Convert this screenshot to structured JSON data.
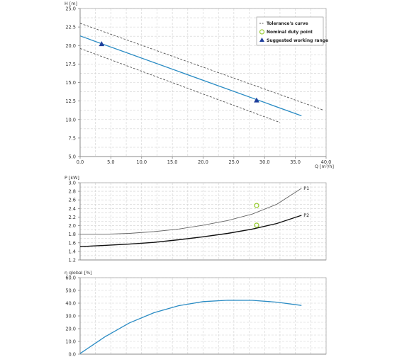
{
  "colors": {
    "curve": "#2b8cc4",
    "tolerance": "#555555",
    "p1": "#666666",
    "p2": "#111111",
    "duty_point": "#9acd32",
    "working_range": "#1f3f9c",
    "grid": "#d0d0d0",
    "axis": "#888888",
    "text": "#333333"
  },
  "chart_data": [
    {
      "type": "line",
      "ylabel": "H [m]",
      "xlabel": "Q [m³/h]",
      "xlim": [
        0,
        40
      ],
      "ylim": [
        5,
        25
      ],
      "xticks": [
        0,
        5,
        10,
        15,
        20,
        25,
        30,
        35,
        40
      ],
      "xtick_labels": [
        "0.0",
        "5.0",
        "10.0",
        "15.0",
        "20.0",
        "25.0",
        "30.0",
        "35.0",
        "40.0"
      ],
      "yticks": [
        5,
        7.5,
        10,
        12.5,
        15,
        17.5,
        20,
        22.5,
        25
      ],
      "ytick_labels": [
        "5.0",
        "7.5",
        "10.0",
        "12.5",
        "15.0",
        "17.5",
        "20.0",
        "22.5",
        "25.0"
      ],
      "grid": true,
      "legend_position": "top-right",
      "legend": [
        "Tolerance's curve",
        "Nominal duty point",
        "Suggested working range"
      ],
      "series": [
        {
          "role": "curve",
          "x": [
            0,
            36
          ],
          "y": [
            21.3,
            10.5
          ]
        },
        {
          "role": "tolerance",
          "x": [
            0,
            39.5
          ],
          "y": [
            23.0,
            11.3
          ]
        },
        {
          "role": "tolerance",
          "x": [
            0,
            32.5
          ],
          "y": [
            19.6,
            9.6
          ]
        }
      ],
      "working_range_points": [
        {
          "x": 3.5,
          "y": 20.2
        },
        {
          "x": 28.7,
          "y": 12.6
        }
      ]
    },
    {
      "type": "line",
      "ylabel": "P [kW]",
      "xlim": [
        0,
        40
      ],
      "ylim": [
        1.2,
        3.0
      ],
      "yticks": [
        1.2,
        1.4,
        1.6,
        1.8,
        2.0,
        2.2,
        2.4,
        2.6,
        2.8,
        3.0
      ],
      "ytick_labels": [
        "1.2",
        "1.4",
        "1.6",
        "1.8",
        "2.0",
        "2.2",
        "2.4",
        "2.6",
        "2.8",
        "3.0"
      ],
      "grid": true,
      "series": [
        {
          "name": "P1",
          "x": [
            0,
            4,
            8,
            12,
            16,
            20,
            24,
            28,
            32,
            36
          ],
          "y": [
            1.8,
            1.8,
            1.82,
            1.86,
            1.92,
            2.01,
            2.12,
            2.27,
            2.5,
            2.87
          ]
        },
        {
          "name": "P2",
          "x": [
            0,
            4,
            8,
            12,
            16,
            20,
            24,
            28,
            32,
            36
          ],
          "y": [
            1.51,
            1.54,
            1.57,
            1.61,
            1.67,
            1.74,
            1.82,
            1.92,
            2.05,
            2.24
          ]
        }
      ],
      "duty_points": [
        {
          "x": 28.7,
          "y": 2.47
        },
        {
          "x": 28.7,
          "y": 2.01
        }
      ]
    },
    {
      "type": "line",
      "ylabel": "η global [%]",
      "xlim": [
        0,
        40
      ],
      "ylim": [
        0,
        60
      ],
      "yticks": [
        0,
        10,
        20,
        30,
        40,
        50,
        60
      ],
      "ytick_labels": [
        "0.0",
        "10.0",
        "20.0",
        "30.0",
        "40.0",
        "50.0",
        "60.0"
      ],
      "grid": true,
      "series": [
        {
          "name": "",
          "x": [
            0,
            4,
            8,
            12,
            16,
            20,
            24,
            28,
            32,
            36
          ],
          "y": [
            0.5,
            13.5,
            24.5,
            32.5,
            38.0,
            41.2,
            42.3,
            42.2,
            40.8,
            38.2
          ]
        }
      ]
    }
  ]
}
